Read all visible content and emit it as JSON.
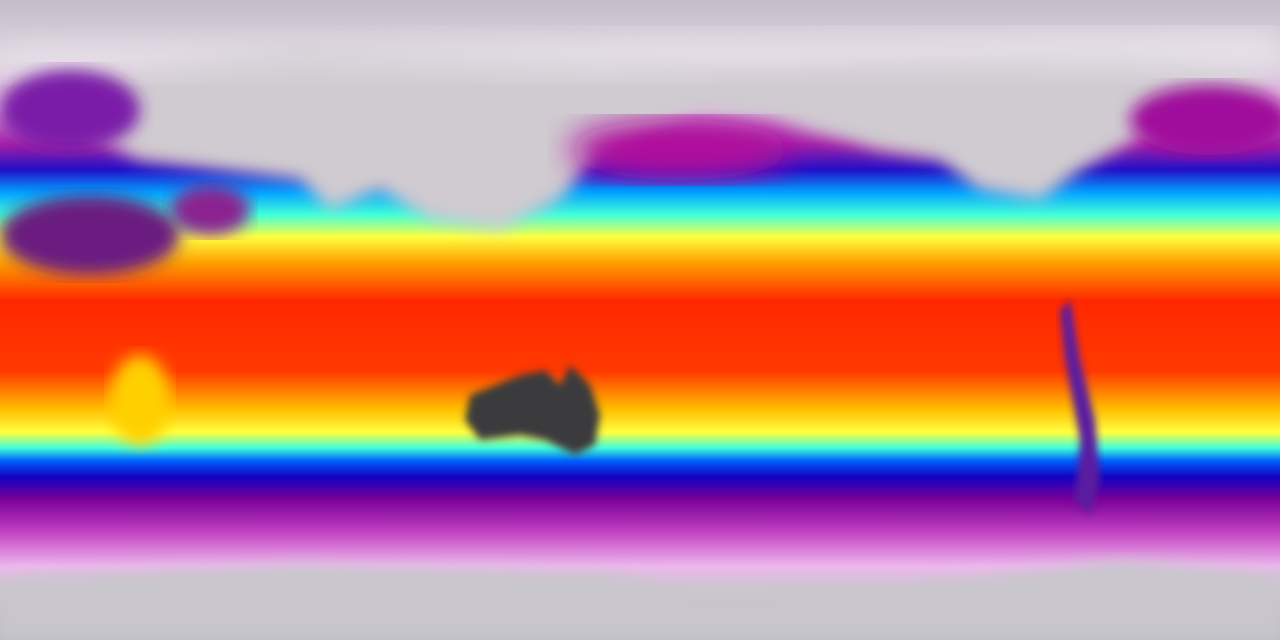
{
  "map": {
    "projection": "equirectangular",
    "variable_shown_by_color": "temperature",
    "colormap": [
      "#c8c2cc",
      "#e8dce8",
      "#c040c0",
      "#7a0098",
      "#1808c8",
      "#0090ff",
      "#40ffe0",
      "#ffff30",
      "#ffa000",
      "#ff2a00"
    ],
    "land_cold_color": "#b8b8bc",
    "australia_color": "#3a3a3c"
  }
}
